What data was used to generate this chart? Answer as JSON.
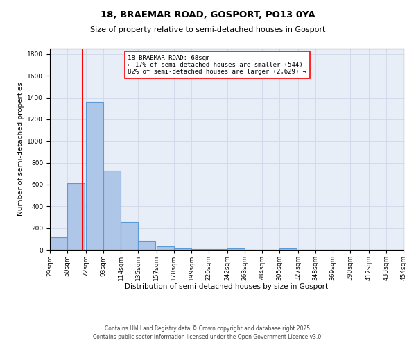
{
  "title_line1": "18, BRAEMAR ROAD, GOSPORT, PO13 0YA",
  "title_line2": "Size of property relative to semi-detached houses in Gosport",
  "xlabel": "Distribution of semi-detached houses by size in Gosport",
  "ylabel": "Number of semi-detached properties",
  "bar_left_edges": [
    29,
    50,
    72,
    93,
    114,
    135,
    157,
    178,
    199,
    220,
    242,
    263,
    284,
    305,
    327,
    348,
    369,
    390,
    412,
    433
  ],
  "bar_heights": [
    113,
    612,
    1358,
    725,
    255,
    80,
    35,
    13,
    5,
    5,
    13,
    0,
    0,
    13,
    0,
    0,
    0,
    0,
    0,
    0
  ],
  "bin_width": 21,
  "bar_color": "#aec6e8",
  "bar_edge_color": "#5b9bd5",
  "bar_linewidth": 0.8,
  "vline_x": 68,
  "vline_color": "red",
  "vline_linewidth": 1.5,
  "ylim": [
    0,
    1850
  ],
  "yticks": [
    0,
    200,
    400,
    600,
    800,
    1000,
    1200,
    1400,
    1600,
    1800
  ],
  "xtick_labels": [
    "29sqm",
    "50sqm",
    "72sqm",
    "93sqm",
    "114sqm",
    "135sqm",
    "157sqm",
    "178sqm",
    "199sqm",
    "220sqm",
    "242sqm",
    "263sqm",
    "284sqm",
    "305sqm",
    "327sqm",
    "348sqm",
    "369sqm",
    "390sqm",
    "412sqm",
    "433sqm",
    "454sqm"
  ],
  "annotation_title": "18 BRAEMAR ROAD: 68sqm",
  "annotation_line1": "← 17% of semi-detached houses are smaller (544)",
  "annotation_line2": "82% of semi-detached houses are larger (2,629) →",
  "annotation_box_color": "white",
  "annotation_box_edge_color": "red",
  "grid_color": "#d0d8e8",
  "background_color": "#e8eef8",
  "footer_line1": "Contains HM Land Registry data © Crown copyright and database right 2025.",
  "footer_line2": "Contains public sector information licensed under the Open Government Licence v3.0.",
  "title_fontsize": 9.5,
  "subtitle_fontsize": 8,
  "axis_label_fontsize": 7.5,
  "tick_fontsize": 6.5,
  "annotation_fontsize": 6.5,
  "footer_fontsize": 5.5
}
